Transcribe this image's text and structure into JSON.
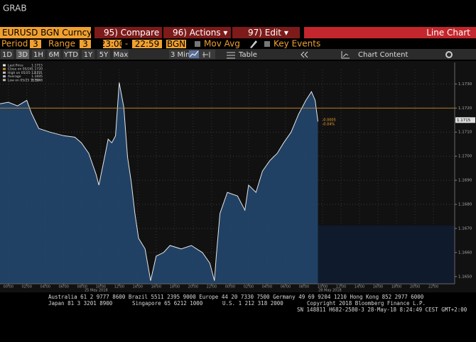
{
  "header": {
    "app_title": "GRAB",
    "security": "EURUSD BGN Curncy",
    "menu": [
      "95) Compare",
      "96) Actions ▾",
      "97) Edit ▾"
    ],
    "view": "Line Chart"
  },
  "settings_bar": {
    "period_label": "Period",
    "period_value": "3",
    "range_label": "Range",
    "range_value": "3",
    "range_start": "23:00",
    "range_sep": "-",
    "range_end": "22:59",
    "source": "BGN",
    "mov_avg": "Mov Avg",
    "key_events": "Key Events"
  },
  "toolbar": {
    "periods": [
      "1D",
      "3D",
      "1H",
      "6M",
      "YTD",
      "1Y",
      "5Y",
      "Max"
    ],
    "interval": "3 Min ▾",
    "table": "Table",
    "chart_content": "Chart Content"
  },
  "chart_data": {
    "type": "line",
    "grid": true,
    "legend": [
      {
        "label": "Last Price",
        "value": 1.1715
      },
      {
        "label": "Close on 05/24",
        "value": 1.172,
        "value_label": "1.1720"
      },
      {
        "label": "High on 05/25 12:27",
        "value": 1.1731
      },
      {
        "label": "Average",
        "value": 1.1695
      },
      {
        "label": "Low on 05/25 15:53",
        "value": 1.1648
      }
    ],
    "change_labels": [
      "-0.0005",
      "-0.04%"
    ],
    "series": [
      {
        "name": "Last Price",
        "color": "#e6e6e6",
        "fill": "#24476e",
        "x": [
          -0.9,
          0,
          1,
          2,
          2.5,
          3.3,
          4.5,
          6,
          7.2,
          7.9,
          8.7,
          9.5,
          9.8,
          10.5,
          10.8,
          11.2,
          11.6,
          12,
          12.5,
          12.9,
          13.3,
          13.7,
          14.1,
          14.8,
          15.4,
          16,
          16.8,
          17.5,
          18.7,
          19.8,
          21,
          21.8,
          22.3,
          22.5,
          22.9,
          23.7,
          24.8,
          25.6,
          26,
          26.8,
          27.5,
          28.3,
          29.1,
          29.8,
          30.6,
          31.4,
          32.2,
          32.8,
          33.2,
          33.5
        ],
        "values": [
          1.17218,
          1.17224,
          1.17209,
          1.17232,
          1.17179,
          1.17115,
          1.171,
          1.17085,
          1.17079,
          1.17056,
          1.17012,
          1.16924,
          1.1688,
          1.17012,
          1.17071,
          1.17056,
          1.17085,
          1.17306,
          1.17203,
          1.16997,
          1.16894,
          1.16762,
          1.16659,
          1.16615,
          1.16483,
          1.16585,
          1.166,
          1.16629,
          1.16615,
          1.16629,
          1.166,
          1.16556,
          1.16483,
          1.16585,
          1.16762,
          1.1685,
          1.16835,
          1.16776,
          1.1688,
          1.1685,
          1.16938,
          1.16982,
          1.17012,
          1.17056,
          1.171,
          1.17174,
          1.17232,
          1.17268,
          1.17232,
          1.17144
        ]
      }
    ],
    "xlim": [
      -0.9,
      48.3
    ],
    "xticks": [
      {
        "value": 0,
        "label": "00:00"
      },
      {
        "value": 2,
        "label": "02:00"
      },
      {
        "value": 4,
        "label": "04:00"
      },
      {
        "value": 6,
        "label": "06:00"
      },
      {
        "value": 8,
        "label": "08:00"
      },
      {
        "value": 10,
        "label": "10:00"
      },
      {
        "value": 12,
        "label": "12:00"
      },
      {
        "value": 14,
        "label": "14:00"
      },
      {
        "value": 16,
        "label": "16:00"
      },
      {
        "value": 18,
        "label": "18:00"
      },
      {
        "value": 20,
        "label": "20:00"
      },
      {
        "value": 22,
        "label": "22:00"
      },
      {
        "value": 24,
        "label": "00:00"
      },
      {
        "value": 26,
        "label": "02:00"
      },
      {
        "value": 28,
        "label": "04:00"
      },
      {
        "value": 30,
        "label": "06:00"
      },
      {
        "value": 32,
        "label": "08:00"
      },
      {
        "value": 34,
        "label": "10:00"
      },
      {
        "value": 36,
        "label": "12:00"
      },
      {
        "value": 38,
        "label": "14:00"
      },
      {
        "value": 40,
        "label": "16:00"
      },
      {
        "value": 42,
        "label": "18:00"
      },
      {
        "value": 44,
        "label": "20:00"
      },
      {
        "value": 46,
        "label": "22:00"
      }
    ],
    "x_date_labels": [
      {
        "value": 9.5,
        "label": "25 May 2018"
      },
      {
        "value": 34.8,
        "label": "28 May 2018"
      }
    ],
    "ylim": [
      1.1647,
      1.1736
    ],
    "yticks": [
      {
        "value": 1.165,
        "label": "1.1650"
      },
      {
        "value": 1.166,
        "label": "1.1660"
      },
      {
        "value": 1.167,
        "label": "1.1670"
      },
      {
        "value": 1.168,
        "label": "1.1680"
      },
      {
        "value": 1.169,
        "label": "1.1690"
      },
      {
        "value": 1.17,
        "label": "1.1700"
      },
      {
        "value": 1.171,
        "label": "1.1710"
      },
      {
        "value": 1.172,
        "label": "1.1720"
      },
      {
        "value": 1.173,
        "label": "1.1730"
      }
    ]
  },
  "footer": {
    "line1": "Australia 61 2 9777 8600 Brazil 5511 2395 9000 Europe 44 20 7330 7500 Germany 49 69 9204 1210 Hong Kong 852 2977 6000",
    "line2a": "Japan 81 3 3201 8900",
    "line2b": "Singapore 65 6212 1000",
    "line2c": "U.S. 1 212 318 2000",
    "line2d": "Copyright 2018 Bloomberg Finance L.P.",
    "line3": "SN 148811 H682-2580-3 28-May-18  8:24:49 CEST GMT+2:00"
  }
}
